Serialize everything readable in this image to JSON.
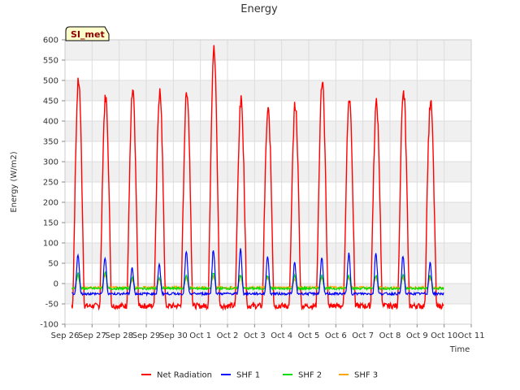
{
  "chart_data": {
    "type": "line",
    "title": "Energy",
    "site_label": "SI_met",
    "xlabel": "Time",
    "ylabel": "Energy (W/m2)",
    "ylim": [
      -100,
      600
    ],
    "yticks": [
      -100,
      -50,
      0,
      50,
      100,
      150,
      200,
      250,
      300,
      350,
      400,
      450,
      500,
      550,
      600
    ],
    "xlim": [
      0,
      15
    ],
    "xtick_labels": [
      "Sep 26",
      "Sep 27",
      "Sep 28",
      "Sep 29",
      "Sep 30",
      "Oct 1",
      "Oct 2",
      "Oct 3",
      "Oct 4",
      "Oct 5",
      "Oct 6",
      "Oct 7",
      "Oct 8",
      "Oct 9",
      "Oct 10",
      "Oct 11"
    ],
    "grid": true,
    "legend_position": "bottom",
    "series": [
      {
        "name": "Net Radiation",
        "color": "#ff0000",
        "daily_peaks": [
          500,
          460,
          470,
          470,
          475,
          575,
          450,
          425,
          440,
          500,
          458,
          443,
          473,
          447
        ],
        "night_value": -55
      },
      {
        "name": "SHF 1",
        "color": "#0000ff",
        "daily_peaks": [
          70,
          65,
          40,
          45,
          80,
          85,
          85,
          68,
          50,
          62,
          72,
          75,
          68,
          50
        ],
        "night_value": -25
      },
      {
        "name": "SHF 2",
        "color": "#00dd00",
        "daily_peaks": [
          25,
          28,
          15,
          15,
          20,
          25,
          22,
          20,
          18,
          20,
          20,
          22,
          22,
          20
        ],
        "night_value": -12
      },
      {
        "name": "SHF 3",
        "color": "#ffa500",
        "daily_peaks": [
          20,
          22,
          10,
          10,
          15,
          18,
          18,
          15,
          12,
          15,
          15,
          15,
          15,
          12
        ],
        "night_value": -10
      }
    ]
  }
}
